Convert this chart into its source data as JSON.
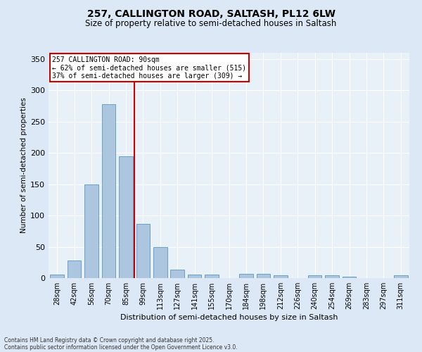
{
  "title_line1": "257, CALLINGTON ROAD, SALTASH, PL12 6LW",
  "title_line2": "Size of property relative to semi-detached houses in Saltash",
  "xlabel": "Distribution of semi-detached houses by size in Saltash",
  "ylabel": "Number of semi-detached properties",
  "categories": [
    "28sqm",
    "42sqm",
    "56sqm",
    "70sqm",
    "85sqm",
    "99sqm",
    "113sqm",
    "127sqm",
    "141sqm",
    "155sqm",
    "170sqm",
    "184sqm",
    "198sqm",
    "212sqm",
    "226sqm",
    "240sqm",
    "254sqm",
    "269sqm",
    "283sqm",
    "297sqm",
    "311sqm"
  ],
  "values": [
    6,
    28,
    150,
    278,
    195,
    87,
    49,
    13,
    6,
    6,
    0,
    7,
    7,
    4,
    0,
    5,
    5,
    2,
    0,
    0,
    4
  ],
  "bar_color": "#adc6e0",
  "bar_edge_color": "#6aa0cc",
  "vline_x_index": 4,
  "vline_color": "#cc0000",
  "annotation_title": "257 CALLINGTON ROAD: 90sqm",
  "annotation_line2": "← 62% of semi-detached houses are smaller (515)",
  "annotation_line3": "37% of semi-detached houses are larger (309) →",
  "annotation_box_color": "white",
  "annotation_box_edge": "#cc0000",
  "ylim": [
    0,
    360
  ],
  "yticks": [
    0,
    50,
    100,
    150,
    200,
    250,
    300,
    350
  ],
  "footer_line1": "Contains HM Land Registry data © Crown copyright and database right 2025.",
  "footer_line2": "Contains public sector information licensed under the Open Government Licence v3.0.",
  "bg_color": "#dce8f5",
  "plot_bg_color": "#e8f0f8"
}
